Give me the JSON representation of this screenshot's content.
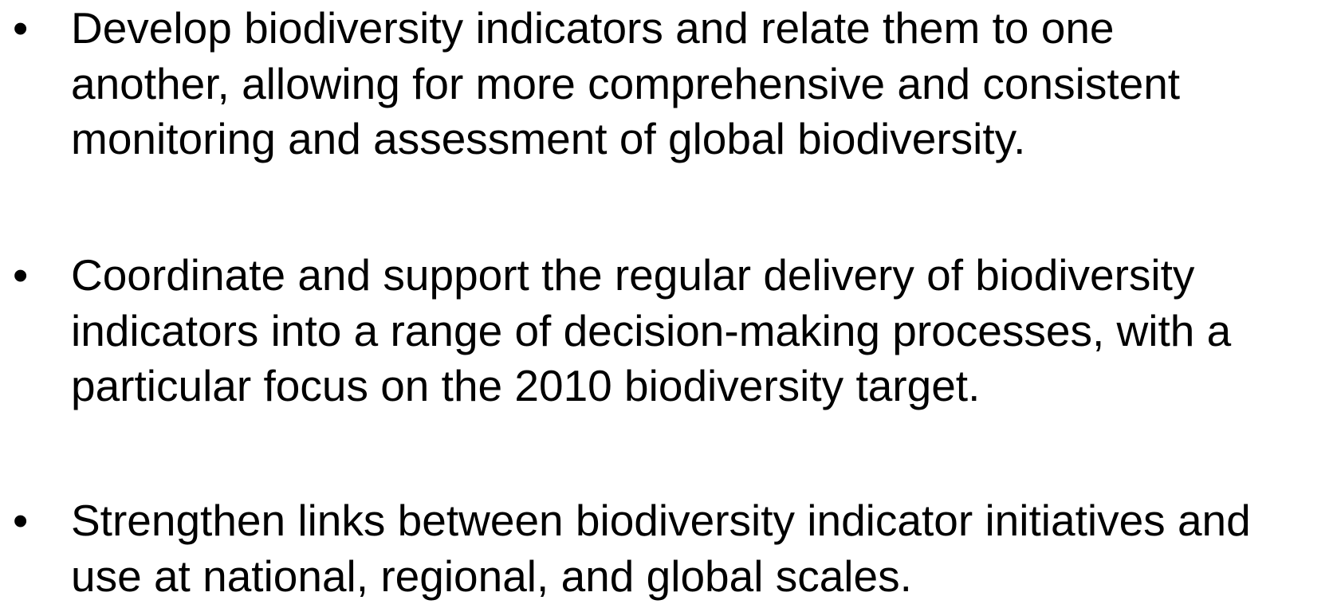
{
  "items": [
    {
      "lines": [
        "Develop biodiversity indicators and relate them to one",
        "another, allowing for more comprehensive and consistent",
        "monitoring and assessment of global biodiversity."
      ]
    },
    {
      "lines": [
        "Coordinate and support the regular delivery of biodiversity",
        "indicators into a range of decision-making processes, with a",
        "particular focus on the 2010 biodiversity target."
      ]
    },
    {
      "lines": [
        "Strengthen links between biodiversity indicator initiatives and",
        "use at national, regional, and global scales."
      ]
    }
  ]
}
